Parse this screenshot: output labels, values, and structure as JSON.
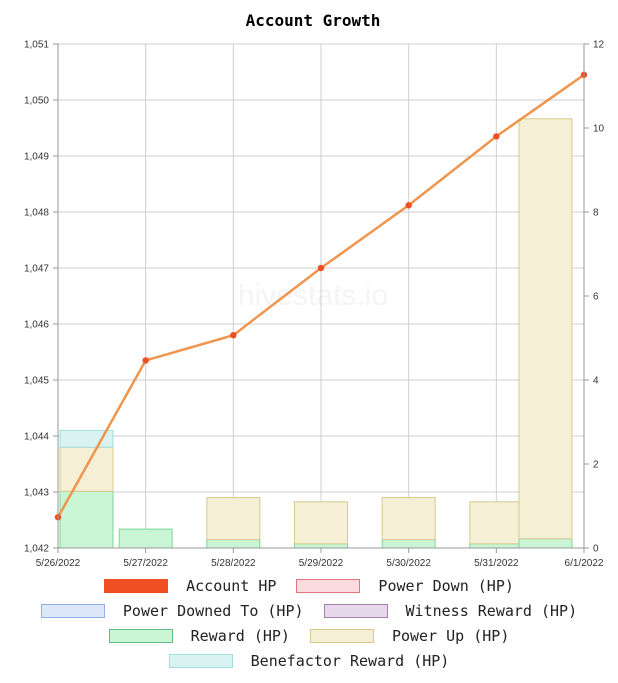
{
  "chart_data": {
    "type": "bar",
    "title": "Account Growth",
    "categories": [
      "5/26/2022",
      "5/27/2022",
      "5/28/2022",
      "5/29/2022",
      "5/30/2022",
      "5/31/2022",
      "6/1/2022"
    ],
    "y_left": {
      "ylim": [
        1042,
        1051
      ],
      "ticks": [
        "1,042",
        "1,043",
        "1,044",
        "1,045",
        "1,046",
        "1,047",
        "1,048",
        "1,049",
        "1,050",
        "1,051"
      ]
    },
    "y_right": {
      "ylim": [
        0,
        12
      ],
      "ticks": [
        "0",
        "2",
        "4",
        "6",
        "8",
        "10",
        "12"
      ]
    },
    "line_series": {
      "name": "Account HP",
      "axis": "left",
      "color": "#f0954d",
      "values": [
        1042.55,
        1045.35,
        1045.8,
        1047.0,
        1048.12,
        1049.35,
        1050.45
      ]
    },
    "bar_series": [
      {
        "name": "Reward (HP)",
        "axis": "right",
        "fill": "#c9f5d5",
        "stroke": "#7dd69a",
        "values": [
          1.35,
          0.45,
          0.2,
          0.1,
          0.2,
          0.1,
          0.22
        ]
      },
      {
        "name": "Power Up (HP)",
        "axis": "right",
        "fill": "#f5efd6",
        "stroke": "#d8c98c",
        "values": [
          1.05,
          0,
          1.0,
          1.0,
          1.0,
          1.0,
          10.0
        ]
      },
      {
        "name": "Benefactor Reward (HP)",
        "axis": "right",
        "fill": "#d9f3f3",
        "stroke": "#a3dede",
        "values": [
          0.4,
          0,
          0,
          0,
          0,
          0,
          0
        ]
      }
    ],
    "grid": true,
    "legend_position": "bottom"
  },
  "watermark": "hivestats.io",
  "legend": [
    [
      {
        "label": "Account HP",
        "fill": "#f04e23",
        "stroke": "#f04e23"
      },
      {
        "label": "Power Down (HP)",
        "fill": "#fcdbe0",
        "stroke": "#e4737f"
      }
    ],
    [
      {
        "label": "Power Downed To (HP)",
        "fill": "#dde8fb",
        "stroke": "#8cb0e6"
      },
      {
        "label": "Witness Reward (HP)",
        "fill": "#e6d8ea",
        "stroke": "#a780b0"
      }
    ],
    [
      {
        "label": "Reward (HP)",
        "fill": "#c9f5d5",
        "stroke": "#5cc47d"
      },
      {
        "label": "Power Up (HP)",
        "fill": "#f5efd6",
        "stroke": "#d8c98c"
      }
    ],
    [
      {
        "label": "Benefactor Reward (HP)",
        "fill": "#d9f3f3",
        "stroke": "#a3dede"
      }
    ]
  ]
}
